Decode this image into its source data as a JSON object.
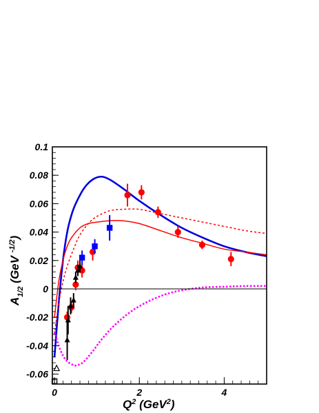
{
  "chart_data": {
    "type": "scatter",
    "title": "",
    "xlabel": {
      "base": "Q",
      "sup": "2",
      "unit_open": " (GeV",
      "unit_sup": "2",
      "unit_close": ")"
    },
    "ylabel": {
      "base": "A",
      "sub": "1/2",
      "unit_open": " (GeV ",
      "unit_sup": "-1/2",
      "unit_close": ")"
    },
    "xlim": [
      -0.05,
      5.0
    ],
    "ylim": [
      -0.067,
      0.1
    ],
    "x_ticks": [
      0,
      2,
      4
    ],
    "x_tick_labels": [
      "0",
      "2",
      "4"
    ],
    "y_ticks": [
      -0.06,
      -0.04,
      -0.02,
      0,
      0.02,
      0.04,
      0.06,
      0.08,
      0.1
    ],
    "y_tick_labels": [
      "-0.06",
      "-0.04",
      "-0.02",
      "0",
      "0.02",
      "0.04",
      "0.06",
      "0.08",
      "0.1"
    ],
    "zero_line": true,
    "grid": false,
    "series": [
      {
        "marker": "circle",
        "color": "#ff0000",
        "points": [
          {
            "x": 0.3,
            "y": -0.02,
            "err": 0.004
          },
          {
            "x": 0.4,
            "y": -0.013,
            "err": 0.004
          },
          {
            "x": 0.5,
            "y": 0.003,
            "err": 0.004
          },
          {
            "x": 0.55,
            "y": 0.015,
            "err": 0.005
          },
          {
            "x": 0.65,
            "y": 0.013,
            "err": 0.005
          },
          {
            "x": 0.9,
            "y": 0.026,
            "err": 0.006
          },
          {
            "x": 1.72,
            "y": 0.066,
            "err": 0.008
          },
          {
            "x": 2.05,
            "y": 0.068,
            "err": 0.005
          },
          {
            "x": 2.44,
            "y": 0.054,
            "err": 0.004
          },
          {
            "x": 2.91,
            "y": 0.04,
            "err": 0.004
          },
          {
            "x": 3.48,
            "y": 0.031,
            "err": 0.003
          },
          {
            "x": 4.16,
            "y": 0.021,
            "err": 0.005
          }
        ]
      },
      {
        "marker": "square",
        "color": "#0000ff",
        "points": [
          {
            "x": 0.65,
            "y": 0.022,
            "err": 0.005
          },
          {
            "x": 0.95,
            "y": 0.03,
            "err": 0.005
          },
          {
            "x": 1.3,
            "y": 0.043,
            "err": 0.009
          }
        ]
      },
      {
        "marker": "triangle",
        "color": "#000000",
        "points": [
          {
            "x": 0.3,
            "y": -0.036,
            "err": 0.014
          },
          {
            "x": 0.32,
            "y": -0.022,
            "err": 0.01
          },
          {
            "x": 0.38,
            "y": -0.012,
            "err": 0.006
          },
          {
            "x": 0.45,
            "y": -0.008,
            "err": 0.005
          },
          {
            "x": 0.5,
            "y": 0.008,
            "err": 0.004
          },
          {
            "x": 0.55,
            "y": 0.013,
            "err": 0.004
          },
          {
            "x": 0.6,
            "y": 0.016,
            "err": 0.004
          }
        ]
      },
      {
        "marker": "triangle-open",
        "color": "#000000",
        "points": [
          {
            "x": 0.05,
            "y": -0.056,
            "err": 0
          }
        ]
      },
      {
        "marker": "square-open",
        "color": "#000000",
        "points": [
          {
            "x": 0.0,
            "y": -0.065,
            "err": 0
          }
        ]
      }
    ],
    "curves": [
      {
        "style": "solid-thick",
        "color": "#0000dd",
        "x": [
          0,
          0.1,
          0.2,
          0.3,
          0.4,
          0.5,
          0.7,
          0.9,
          1.1,
          1.3,
          1.6,
          2.0,
          2.5,
          3.0,
          3.5,
          4.0,
          4.5,
          5.0
        ],
        "y": [
          -0.048,
          -0.01,
          0.02,
          0.04,
          0.052,
          0.06,
          0.071,
          0.077,
          0.079,
          0.077,
          0.071,
          0.062,
          0.052,
          0.043,
          0.036,
          0.03,
          0.026,
          0.023
        ]
      },
      {
        "style": "solid",
        "color": "#ff0000",
        "x": [
          0,
          0.1,
          0.2,
          0.3,
          0.4,
          0.6,
          0.8,
          1.0,
          1.3,
          1.6,
          2.0,
          2.5,
          3.0,
          3.5,
          4.0,
          4.5,
          5.0
        ],
        "y": [
          -0.02,
          0.005,
          0.02,
          0.03,
          0.036,
          0.043,
          0.046,
          0.047,
          0.048,
          0.048,
          0.046,
          0.041,
          0.036,
          0.032,
          0.028,
          0.026,
          0.024
        ]
      },
      {
        "style": "dotted",
        "color": "#ff0000",
        "x": [
          0,
          0.1,
          0.2,
          0.3,
          0.45,
          0.6,
          0.8,
          1.0,
          1.3,
          1.6,
          2.0,
          2.5,
          3.0,
          3.5,
          4.0,
          4.5,
          5.0
        ],
        "y": [
          -0.032,
          -0.01,
          0.005,
          0.016,
          0.028,
          0.038,
          0.046,
          0.051,
          0.055,
          0.056,
          0.056,
          0.053,
          0.05,
          0.047,
          0.044,
          0.041,
          0.039
        ]
      },
      {
        "style": "dotted-thick",
        "color": "#ff00ff",
        "x": [
          0,
          0.1,
          0.2,
          0.3,
          0.4,
          0.5,
          0.6,
          0.7,
          0.9,
          1.1,
          1.4,
          1.8,
          2.2,
          2.6,
          3.0,
          3.5,
          4.0,
          4.5,
          5.0
        ],
        "y": [
          -0.03,
          -0.04,
          -0.047,
          -0.051,
          -0.053,
          -0.054,
          -0.053,
          -0.051,
          -0.044,
          -0.036,
          -0.026,
          -0.016,
          -0.009,
          -0.004,
          -0.001,
          0.001,
          0.0015,
          0.002,
          0.002
        ]
      }
    ]
  }
}
